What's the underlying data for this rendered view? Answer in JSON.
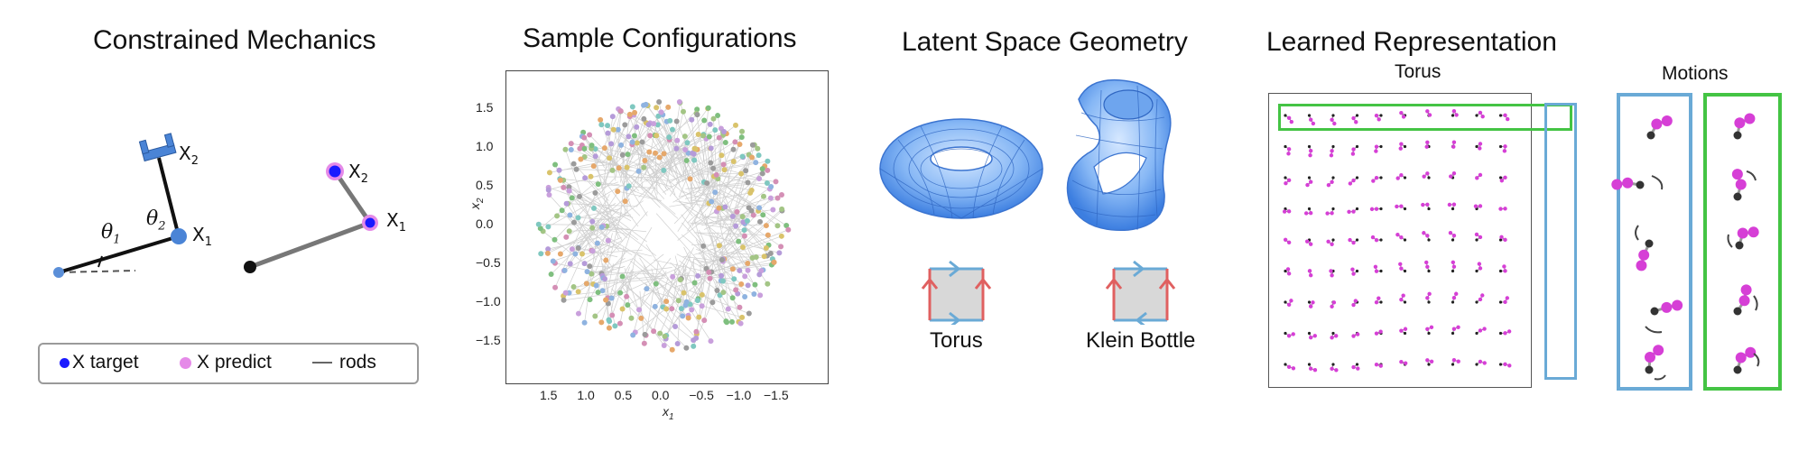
{
  "panels": {
    "mechanics": {
      "title": "Constrained Mechanics",
      "labels": {
        "x2": "X",
        "x2_sub": "2",
        "x1": "X",
        "x1_sub": "1",
        "theta1": "θ",
        "theta1_sub": "1",
        "theta2": "θ",
        "theta2_sub": "2",
        "px2": "X",
        "px2_sub": "2",
        "px1": "X",
        "px1_sub": "1"
      },
      "legend": [
        {
          "label": "X target",
          "color": "#1a1aff"
        },
        {
          "label": "X predict",
          "color": "#e58ae8"
        },
        {
          "label": "rods",
          "color": "#666666"
        }
      ]
    },
    "samples": {
      "title": "Sample Configurations",
      "xlabel": "x",
      "xlabel_sub": "1",
      "ylabel": "x",
      "ylabel_sub": "2",
      "xticks": [
        "1.5",
        "1.0",
        "0.5",
        "0.0",
        "−0.5",
        "−1.0",
        "−1.5"
      ],
      "yticks": [
        "1.5",
        "1.0",
        "0.5",
        "0.0",
        "−0.5",
        "−1.0",
        "−1.5"
      ]
    },
    "latent": {
      "title": "Latent Space Geometry",
      "shapes": [
        {
          "label": "Torus"
        },
        {
          "label": "Klein Bottle"
        }
      ]
    },
    "learned": {
      "title": "Learned Representation",
      "grid_title": "Torus",
      "motions_title": "Motions",
      "colors": {
        "green": "#44c444",
        "blue": "#6aaad6",
        "magenta": "#d63fd6"
      }
    }
  }
}
